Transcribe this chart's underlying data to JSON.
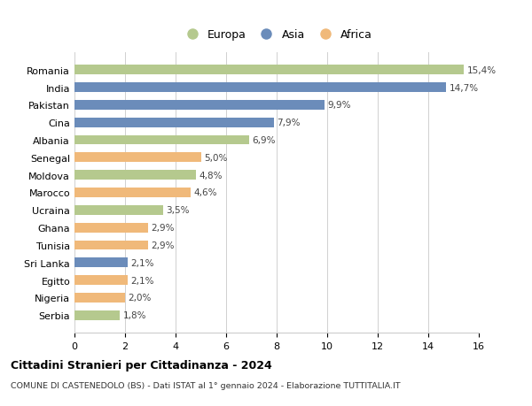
{
  "countries": [
    "Romania",
    "India",
    "Pakistan",
    "Cina",
    "Albania",
    "Senegal",
    "Moldova",
    "Marocco",
    "Ucraina",
    "Ghana",
    "Tunisia",
    "Sri Lanka",
    "Egitto",
    "Nigeria",
    "Serbia"
  ],
  "values": [
    15.4,
    14.7,
    9.9,
    7.9,
    6.9,
    5.0,
    4.8,
    4.6,
    3.5,
    2.9,
    2.9,
    2.1,
    2.1,
    2.0,
    1.8
  ],
  "labels": [
    "15,4%",
    "14,7%",
    "9,9%",
    "7,9%",
    "6,9%",
    "5,0%",
    "4,8%",
    "4,6%",
    "3,5%",
    "2,9%",
    "2,9%",
    "2,1%",
    "2,1%",
    "2,0%",
    "1,8%"
  ],
  "continents": [
    "Europa",
    "Asia",
    "Asia",
    "Asia",
    "Europa",
    "Africa",
    "Europa",
    "Africa",
    "Europa",
    "Africa",
    "Africa",
    "Asia",
    "Africa",
    "Africa",
    "Europa"
  ],
  "colors": {
    "Europa": "#b5c98e",
    "Asia": "#6b8cba",
    "Africa": "#f0b97a"
  },
  "xlim": [
    0,
    16
  ],
  "xticks": [
    0,
    2,
    4,
    6,
    8,
    10,
    12,
    14,
    16
  ],
  "title": "Cittadini Stranieri per Cittadinanza - 2024",
  "subtitle": "COMUNE DI CASTENEDOLO (BS) - Dati ISTAT al 1° gennaio 2024 - Elaborazione TUTTITALIA.IT",
  "background_color": "#ffffff",
  "grid_color": "#d0d0d0",
  "bar_height": 0.55
}
